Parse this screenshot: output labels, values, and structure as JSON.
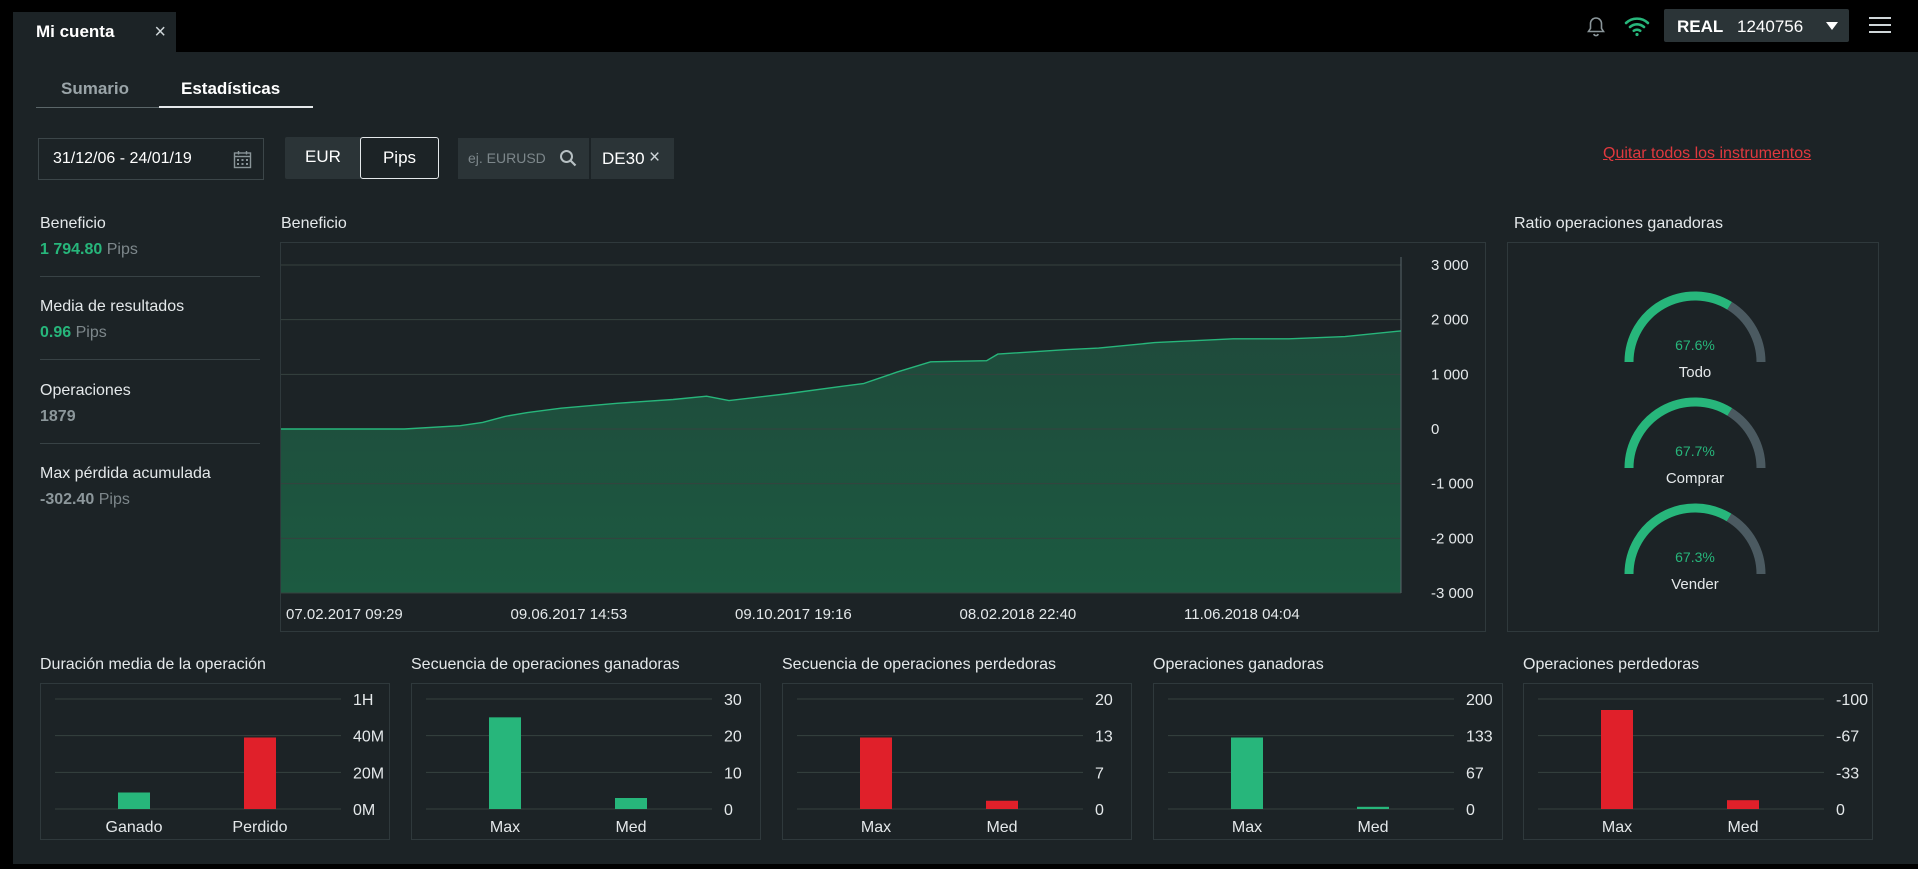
{
  "window_tab": {
    "label": "Mi cuenta",
    "close": "×"
  },
  "account": {
    "type": "REAL",
    "number": "1240756"
  },
  "subtabs": [
    {
      "label": "Sumario"
    },
    {
      "label": "Estadísticas",
      "active": true
    }
  ],
  "filters": {
    "date_range": "31/12/06 - 24/01/19",
    "currency_options": [
      "EUR",
      "Pips"
    ],
    "currency_selected": "Pips",
    "search_placeholder": "ej. EURUSD",
    "instrument_chips": [
      {
        "label": "DE30",
        "close": "×"
      }
    ],
    "remove_all_link": "Quitar todos los instrumentos"
  },
  "stats": [
    {
      "label": "Beneficio",
      "value": "1 794.80",
      "unit": "Pips",
      "color": "#27b67b"
    },
    {
      "label": "Media de resultados",
      "value": "0.96",
      "unit": "Pips",
      "color": "#27b67b"
    },
    {
      "label": "Operaciones",
      "value": "1879",
      "unit": "",
      "color": "#8c979b"
    },
    {
      "label": "Max pérdida acumulada",
      "value": "-302.40",
      "unit": "Pips",
      "color": "#8c979b"
    }
  ],
  "colors": {
    "green": "#27b67b",
    "red": "#e0202a",
    "gauge_rest": "#4b5a61",
    "link_red": "#e0393e"
  },
  "chart_data": [
    {
      "type": "area",
      "title": "Beneficio",
      "ylim": [
        -3000,
        3000
      ],
      "y_ticks": [
        "3 000",
        "2 000",
        "1 000",
        "0",
        "-1 000",
        "-2 000",
        "-3 000"
      ],
      "x_tick_labels": [
        "07.02.2017 09:29",
        "09.06.2017 14:53",
        "09.10.2017 19:16",
        "08.02.2018 22:40",
        "11.06.2018 04:04"
      ],
      "series": [
        {
          "x": [
            0,
            0.11,
            0.16,
            0.18,
            0.2,
            0.22,
            0.25,
            0.3,
            0.35,
            0.38,
            0.4,
            0.45,
            0.5,
            0.52,
            0.55,
            0.58,
            0.63,
            0.64,
            0.7,
            0.73,
            0.78,
            0.82,
            0.85,
            0.9,
            0.95,
            1.0
          ],
          "values": [
            0,
            0,
            60,
            120,
            230,
            300,
            380,
            470,
            540,
            600,
            520,
            640,
            780,
            830,
            1040,
            1230,
            1250,
            1370,
            1450,
            1480,
            1580,
            1620,
            1650,
            1650,
            1690,
            1794.8
          ]
        }
      ],
      "grid": true
    },
    {
      "type": "pie",
      "title": "Ratio operaciones ganadoras",
      "slices": [
        {
          "label": "Todo",
          "value": 67.6,
          "display": "67.6%"
        },
        {
          "label": "Comprar",
          "value": 67.7,
          "display": "67.7%"
        },
        {
          "label": "Vender",
          "value": 67.3,
          "display": "67.3%"
        }
      ]
    },
    {
      "type": "bar",
      "title": "Duración media de la operación",
      "categories": [
        "Ganado",
        "Perdido"
      ],
      "values": [
        9,
        39
      ],
      "value_unit": "minutes",
      "colors": [
        "#27b67b",
        "#e0202a"
      ],
      "ylim": [
        0,
        60
      ],
      "y_ticks": [
        "1H",
        "40M",
        "20M",
        "0M"
      ]
    },
    {
      "type": "bar",
      "title": "Secuencia de operaciones ganadoras",
      "categories": [
        "Max",
        "Med"
      ],
      "values": [
        25,
        3
      ],
      "colors": [
        "#27b67b",
        "#27b67b"
      ],
      "ylim": [
        0,
        30
      ],
      "y_ticks": [
        "30",
        "20",
        "10",
        "0"
      ]
    },
    {
      "type": "bar",
      "title": "Secuencia de operaciones perdedoras",
      "categories": [
        "Max",
        "Med"
      ],
      "values": [
        13,
        1.5
      ],
      "colors": [
        "#e0202a",
        "#e0202a"
      ],
      "ylim": [
        0,
        20
      ],
      "y_ticks": [
        "20",
        "13",
        "7",
        "0"
      ]
    },
    {
      "type": "bar",
      "title": "Operaciones ganadoras",
      "categories": [
        "Max",
        "Med"
      ],
      "values": [
        130,
        4
      ],
      "colors": [
        "#27b67b",
        "#27b67b"
      ],
      "ylim": [
        0,
        200
      ],
      "y_ticks": [
        "200",
        "133",
        "67",
        "0"
      ]
    },
    {
      "type": "bar",
      "title": "Operaciones perdedoras",
      "categories": [
        "Max",
        "Med"
      ],
      "values": [
        -90,
        -8
      ],
      "colors": [
        "#e0202a",
        "#e0202a"
      ],
      "ylim": [
        0,
        -100
      ],
      "y_ticks": [
        "-100",
        "-67",
        "-33",
        "0"
      ]
    }
  ]
}
